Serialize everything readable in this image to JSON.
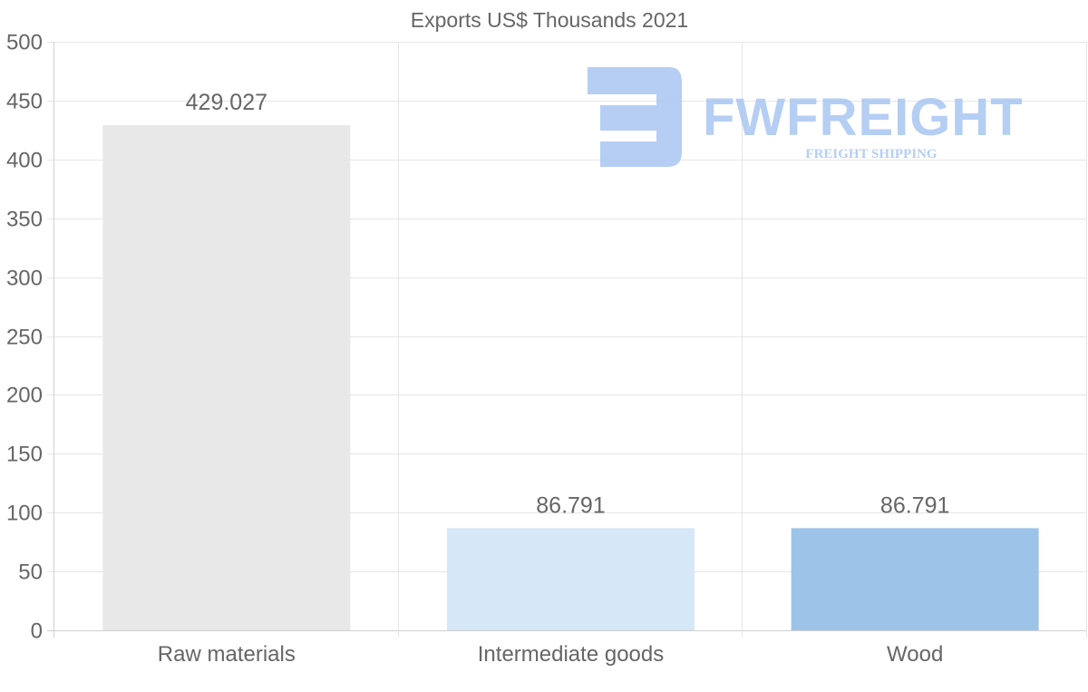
{
  "chart_data": {
    "type": "bar",
    "title": "Exports US$ Thousands 2021",
    "categories": [
      "Raw materials",
      "Intermediate goods",
      "Wood"
    ],
    "values": [
      429.027,
      86.791,
      86.791
    ],
    "data_labels": [
      "429.027",
      "86.791",
      "86.791"
    ],
    "colors": [
      "#e8e8e8",
      "#d6e7f8",
      "#9dc4e8"
    ],
    "xlabel": "",
    "ylabel": "",
    "ylim": [
      0,
      500
    ],
    "yticks": [
      0,
      50,
      100,
      150,
      200,
      250,
      300,
      350,
      400,
      450,
      500
    ],
    "ytick_labels": [
      "0",
      "50",
      "100",
      "150",
      "200",
      "250",
      "300",
      "350",
      "400",
      "450",
      "500"
    ],
    "grid": true,
    "legend": "none"
  },
  "watermark": {
    "brand": "FWFREIGHT",
    "tagline": "FREIGHT SHIPPING",
    "color": "#a9c6f2",
    "logo_icon": "fw-logo-icon"
  }
}
